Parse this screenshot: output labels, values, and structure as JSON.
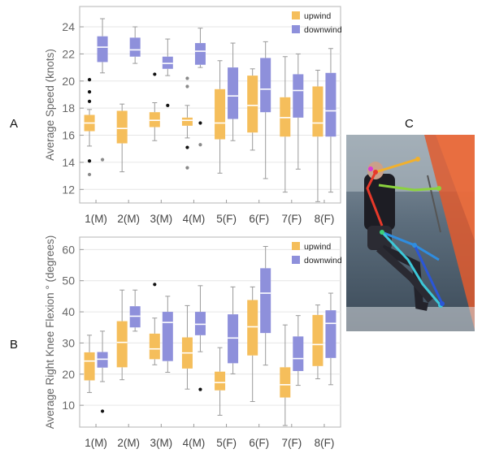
{
  "panels": {
    "a": "A",
    "b": "B",
    "c": "C"
  },
  "colors": {
    "upwind": "#F5BE5B",
    "downwind": "#8E90DB",
    "whisker": "#9a9a9a",
    "outlier": "#111111",
    "outlier_light": "#8a8a8a"
  },
  "chart_data": [
    {
      "type": "box",
      "id": "speed",
      "title": "",
      "xlabel": "",
      "ylabel": "Average Speed (knots)",
      "ylim": [
        11,
        25.5
      ],
      "yticks": [
        12,
        14,
        16,
        18,
        20,
        22,
        24
      ],
      "categories": [
        "1(M)",
        "2(M)",
        "3(M)",
        "4(M)",
        "5(F)",
        "6(F)",
        "7(F)",
        "8(F)"
      ],
      "grid": true,
      "legend_position": "top-right",
      "series": [
        {
          "name": "upwind",
          "boxes": [
            {
              "min": 15.2,
              "q1": 16.3,
              "median": 16.9,
              "q3": 17.5,
              "max": 17.9
            },
            {
              "min": 13.3,
              "q1": 15.4,
              "median": 16.5,
              "q3": 17.8,
              "max": 18.3
            },
            {
              "min": 15.6,
              "q1": 16.6,
              "median": 17.1,
              "q3": 17.7,
              "max": 18.4
            },
            {
              "min": 15.8,
              "q1": 16.7,
              "median": 17.1,
              "q3": 17.3,
              "max": 18.2
            },
            {
              "min": 13.2,
              "q1": 15.7,
              "median": 16.9,
              "q3": 19.4,
              "max": 21.5
            },
            {
              "min": 14.9,
              "q1": 16.2,
              "median": 18.2,
              "q3": 20.4,
              "max": 20.9
            },
            {
              "min": 11.8,
              "q1": 15.9,
              "median": 17.3,
              "q3": 18.8,
              "max": 21.8
            },
            {
              "min": 11.1,
              "q1": 15.9,
              "median": 16.9,
              "q3": 19.6,
              "max": 20.8
            }
          ],
          "outliers": [
            {
              "category": "1(M)",
              "values": [
                20.1,
                19.2,
                18.5,
                14.1,
                13.1
              ],
              "light": [
                false,
                false,
                false,
                false,
                true
              ]
            },
            {
              "category": "3(M)",
              "values": [
                20.5
              ],
              "light": [
                false
              ]
            },
            {
              "category": "4(M)",
              "values": [
                20.2,
                19.6,
                15.1,
                13.6
              ],
              "light": [
                true,
                true,
                false,
                true
              ]
            }
          ]
        },
        {
          "name": "downwind",
          "boxes": [
            {
              "min": 20.6,
              "q1": 21.4,
              "median": 22.5,
              "q3": 23.3,
              "max": 24.6
            },
            {
              "min": 21.3,
              "q1": 21.8,
              "median": 22.3,
              "q3": 23.2,
              "max": 24.0
            },
            {
              "min": 20.4,
              "q1": 20.9,
              "median": 21.3,
              "q3": 21.8,
              "max": 23.1
            },
            {
              "min": 21.0,
              "q1": 21.2,
              "median": 22.2,
              "q3": 22.8,
              "max": 23.9
            },
            {
              "min": 15.6,
              "q1": 17.2,
              "median": 18.9,
              "q3": 21.0,
              "max": 22.8
            },
            {
              "min": 12.8,
              "q1": 17.7,
              "median": 19.4,
              "q3": 21.7,
              "max": 22.9
            },
            {
              "min": 13.5,
              "q1": 17.3,
              "median": 19.3,
              "q3": 20.5,
              "max": 22.0
            },
            {
              "min": 11.8,
              "q1": 15.9,
              "median": 17.8,
              "q3": 20.6,
              "max": 22.4
            }
          ],
          "outliers": [
            {
              "category": "1(M)",
              "values": [
                14.2
              ],
              "light": [
                true
              ]
            },
            {
              "category": "3(M)",
              "values": [
                18.2
              ],
              "light": [
                false
              ]
            },
            {
              "category": "4(M)",
              "values": [
                16.9,
                15.3
              ],
              "light": [
                false,
                true
              ]
            }
          ]
        }
      ]
    },
    {
      "type": "box",
      "id": "knee",
      "title": "",
      "xlabel": "",
      "ylabel": "Average Right Knee Flexion ° (degrees)",
      "ylim": [
        3,
        64
      ],
      "yticks": [
        10,
        20,
        30,
        40,
        50,
        60
      ],
      "categories": [
        "1(M)",
        "2(M)",
        "3(M)",
        "4(M)",
        "5(F)",
        "6(F)",
        "7(F)",
        "8(F)"
      ],
      "grid": true,
      "legend_position": "top-right",
      "series": [
        {
          "name": "upwind",
          "boxes": [
            {
              "min": 14.1,
              "q1": 18.0,
              "median": 24.2,
              "q3": 27.0,
              "max": 32.5
            },
            {
              "min": 18.2,
              "q1": 22.2,
              "median": 30.2,
              "q3": 37.0,
              "max": 47.0
            },
            {
              "min": 23.0,
              "q1": 24.8,
              "median": 28.1,
              "q3": 33.0,
              "max": 38.0
            },
            {
              "min": 15.2,
              "q1": 21.8,
              "median": 26.8,
              "q3": 31.8,
              "max": 42.0
            },
            {
              "min": 6.8,
              "q1": 14.8,
              "median": 17.3,
              "q3": 20.8,
              "max": 28.5
            },
            {
              "min": 11.2,
              "q1": 26.0,
              "median": 35.2,
              "q3": 43.8,
              "max": 48.0
            },
            {
              "min": 3.5,
              "q1": 12.5,
              "median": 16.6,
              "q3": 22.2,
              "max": 35.8
            },
            {
              "min": 18.5,
              "q1": 22.6,
              "median": 29.5,
              "q3": 39.0,
              "max": 42.2
            }
          ],
          "outliers": [
            {
              "category": "3(M)",
              "values": [
                48.8
              ],
              "light": [
                false
              ]
            }
          ]
        },
        {
          "name": "downwind",
          "boxes": [
            {
              "min": 17.6,
              "q1": 22.1,
              "median": 24.8,
              "q3": 27.1,
              "max": 33.8
            },
            {
              "min": 33.8,
              "q1": 35.0,
              "median": 38.6,
              "q3": 41.8,
              "max": 47.0
            },
            {
              "min": 20.6,
              "q1": 24.2,
              "median": 36.6,
              "q3": 40.0,
              "max": 45.0
            },
            {
              "min": 27.2,
              "q1": 32.5,
              "median": 36.0,
              "q3": 40.0,
              "max": 48.4
            },
            {
              "min": 20.1,
              "q1": 23.5,
              "median": 31.6,
              "q3": 39.2,
              "max": 48.0
            },
            {
              "min": 22.9,
              "q1": 33.2,
              "median": 46.0,
              "q3": 54.0,
              "max": 61.0
            },
            {
              "min": 16.4,
              "q1": 21.0,
              "median": 25.0,
              "q3": 32.1,
              "max": 38.8
            },
            {
              "min": 16.6,
              "q1": 25.2,
              "median": 36.3,
              "q3": 40.5,
              "max": 46.0
            }
          ],
          "outliers": [
            {
              "category": "1(M)",
              "values": [
                8.1
              ],
              "light": [
                false
              ]
            },
            {
              "category": "4(M)",
              "values": [
                15.1
              ],
              "light": [
                false
              ]
            }
          ]
        }
      ]
    }
  ]
}
